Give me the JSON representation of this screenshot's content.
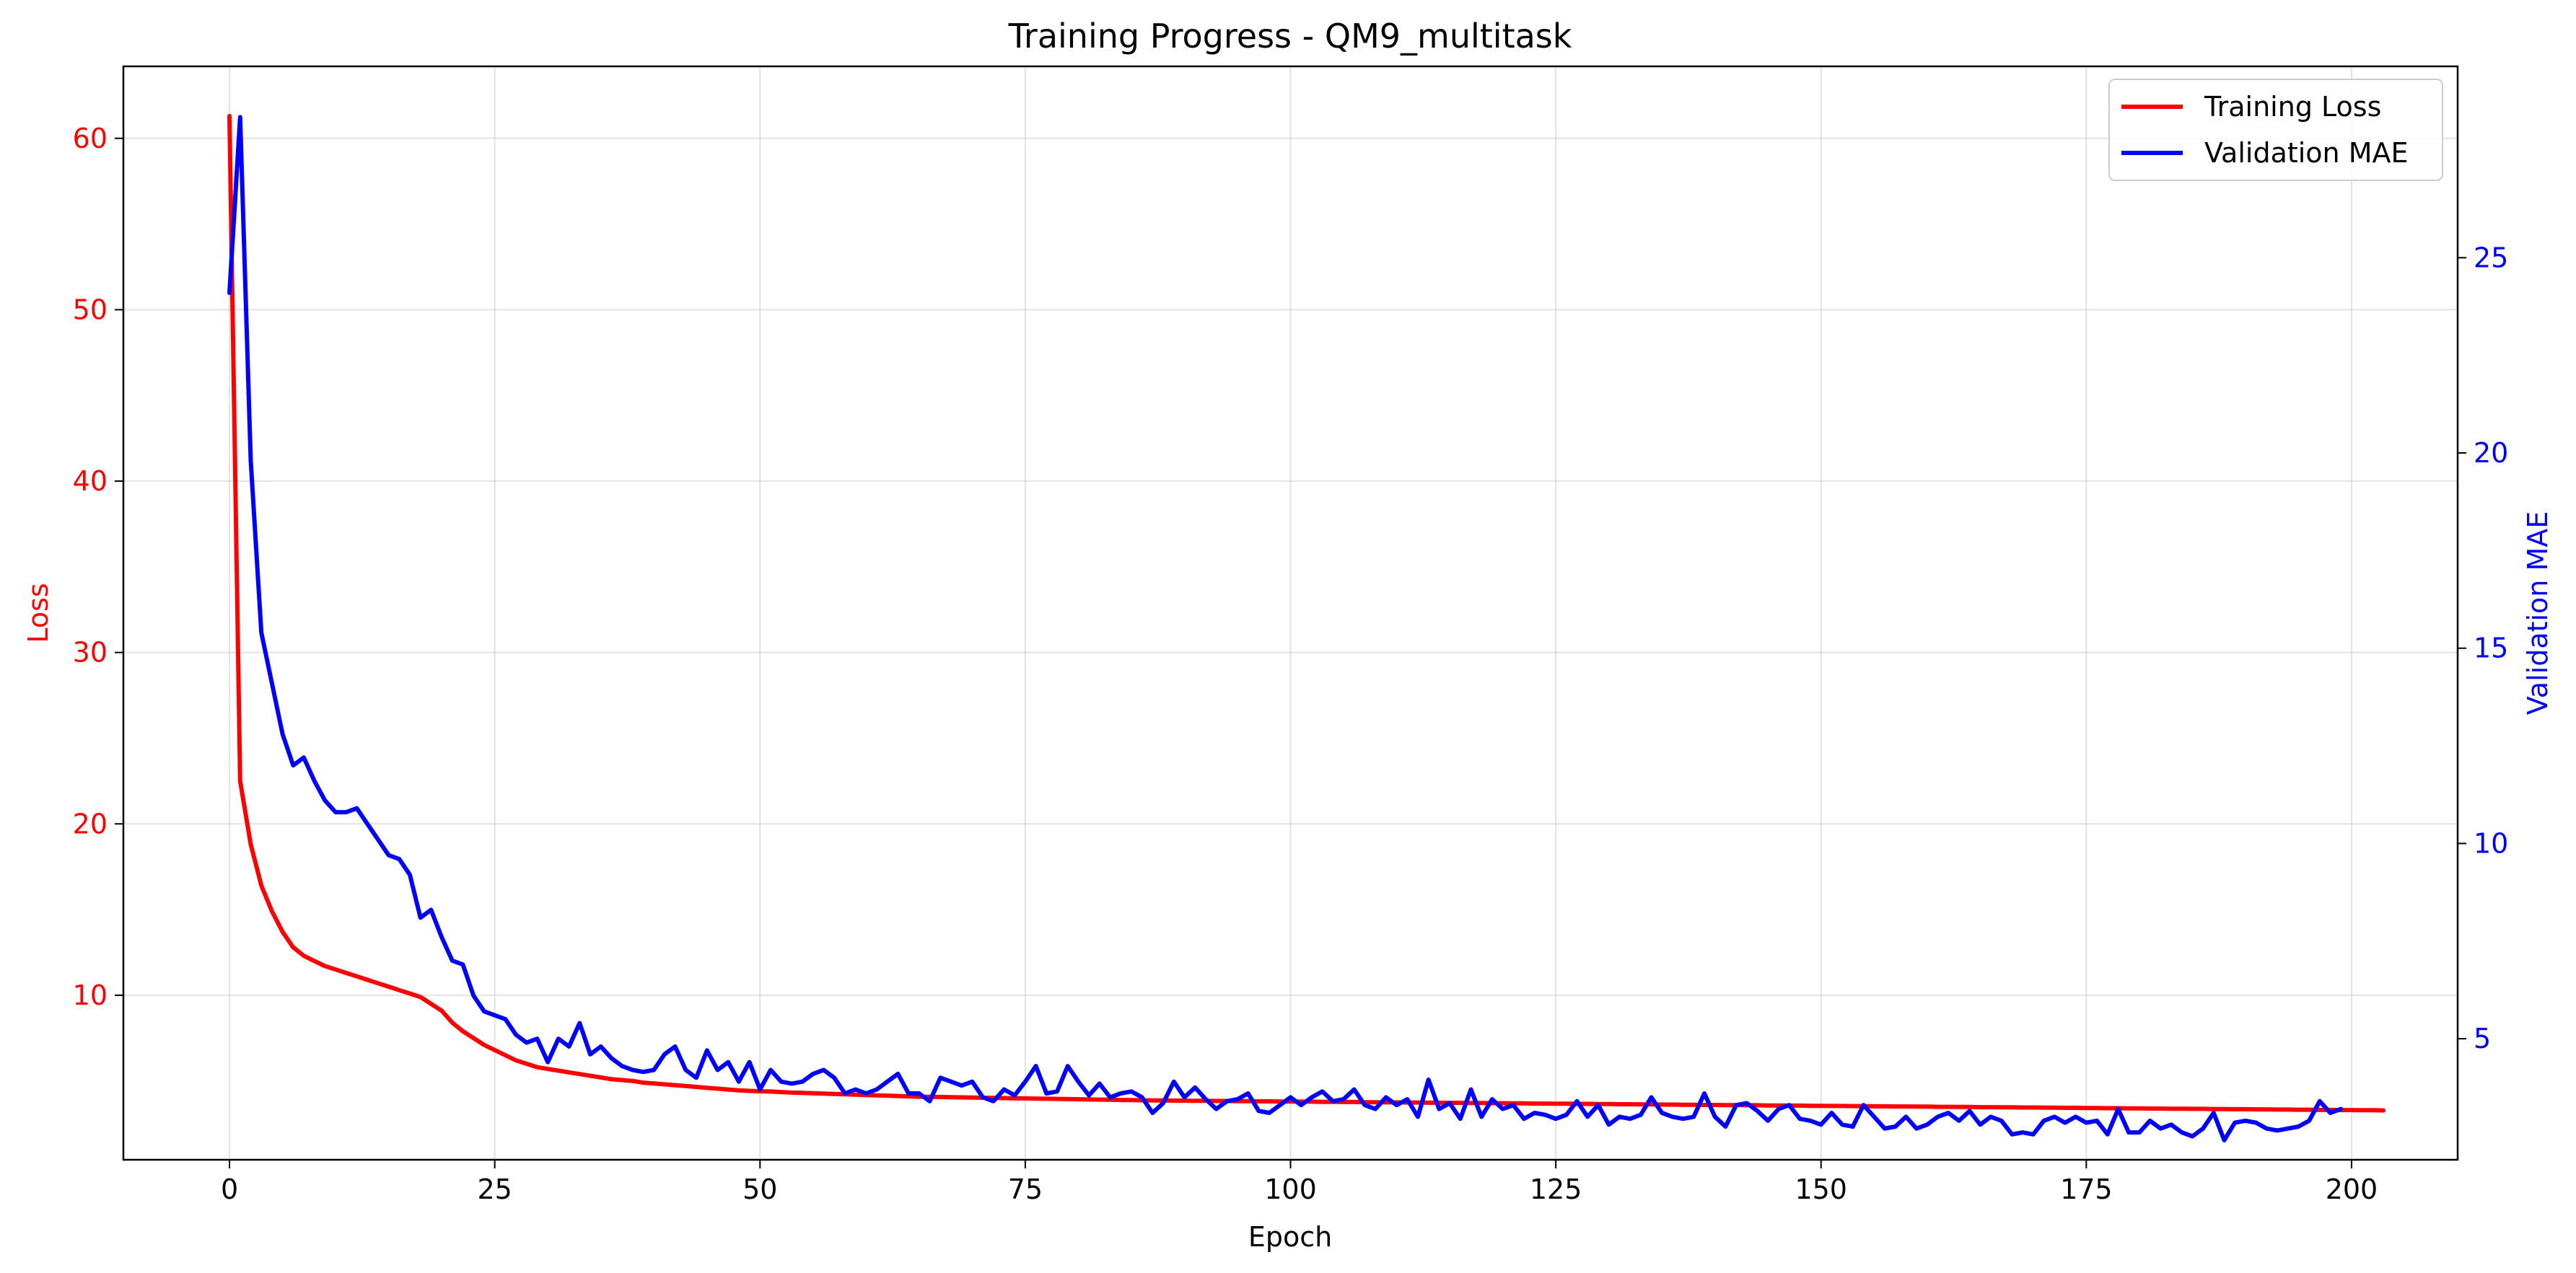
{
  "chart_data": {
    "type": "line",
    "title": "Training Progress - QM9_multitask",
    "xlabel": "Epoch",
    "ylabel_left": "Loss",
    "ylabel_right": "Validation MAE",
    "xlim": [
      -10,
      210
    ],
    "ylim_left": [
      0.4,
      64.2
    ],
    "ylim_right": [
      1.9,
      29.9
    ],
    "x_ticks": [
      0,
      25,
      50,
      75,
      100,
      125,
      150,
      175,
      200
    ],
    "y_ticks_left": [
      10,
      20,
      30,
      40,
      50,
      60
    ],
    "y_ticks_right": [
      5,
      10,
      15,
      20,
      25
    ],
    "grid": true,
    "legend_position": "top-right",
    "colors": {
      "left_axis": "#ff0000",
      "right_axis": "#0000ff"
    },
    "series": [
      {
        "name": "Training Loss",
        "axis": "left",
        "color": "#ff0000",
        "x_start": 0,
        "x_step": 1,
        "values": [
          61.3,
          22.5,
          18.8,
          16.4,
          14.9,
          13.7,
          12.8,
          12.3,
          12.0,
          11.7,
          11.5,
          11.3,
          11.1,
          10.9,
          10.7,
          10.5,
          10.3,
          10.1,
          9.9,
          9.5,
          9.1,
          8.4,
          7.9,
          7.5,
          7.1,
          6.8,
          6.5,
          6.2,
          6.0,
          5.8,
          5.7,
          5.6,
          5.5,
          5.4,
          5.3,
          5.2,
          5.1,
          5.05,
          5.0,
          4.9,
          4.85,
          4.8,
          4.75,
          4.7,
          4.65,
          4.6,
          4.55,
          4.5,
          4.45,
          4.42,
          4.4,
          4.38,
          4.35,
          4.32,
          4.3,
          4.28,
          4.26,
          4.24,
          4.22,
          4.2,
          4.18,
          4.16,
          4.14,
          4.12,
          4.1,
          4.08,
          4.07,
          4.06,
          4.05,
          4.04,
          4.03,
          4.02,
          4.01,
          4.0,
          3.99,
          3.98,
          3.97,
          3.96,
          3.95,
          3.94,
          3.93,
          3.92,
          3.91,
          3.9,
          3.89,
          3.88,
          3.87,
          3.86,
          3.86,
          3.85,
          3.85,
          3.84,
          3.84,
          3.83,
          3.83,
          3.82,
          3.82,
          3.81,
          3.81,
          3.8,
          3.8,
          3.79,
          3.79,
          3.78,
          3.78,
          3.77,
          3.77,
          3.76,
          3.76,
          3.75,
          3.75,
          3.74,
          3.74,
          3.73,
          3.73,
          3.72,
          3.72,
          3.71,
          3.71,
          3.7,
          3.7,
          3.69,
          3.69,
          3.68,
          3.68,
          3.67,
          3.67,
          3.66,
          3.66,
          3.65,
          3.65,
          3.64,
          3.64,
          3.63,
          3.63,
          3.62,
          3.62,
          3.61,
          3.61,
          3.6,
          3.6,
          3.59,
          3.59,
          3.58,
          3.58,
          3.57,
          3.57,
          3.56,
          3.56,
          3.55,
          3.55,
          3.54,
          3.54,
          3.53,
          3.53,
          3.52,
          3.52,
          3.51,
          3.51,
          3.5,
          3.5,
          3.49,
          3.49,
          3.48,
          3.48,
          3.47,
          3.47,
          3.46,
          3.46,
          3.45,
          3.45,
          3.44,
          3.44,
          3.43,
          3.43,
          3.42,
          3.42,
          3.41,
          3.41,
          3.4,
          3.4,
          3.39,
          3.39,
          3.38,
          3.38,
          3.37,
          3.37,
          3.36,
          3.36,
          3.35,
          3.35,
          3.34,
          3.34,
          3.33,
          3.33,
          3.32,
          3.32,
          3.31,
          3.31,
          3.3,
          3.3,
          3.29,
          3.29,
          3.28
        ]
      },
      {
        "name": "Validation MAE",
        "axis": "right",
        "color": "#0000ff",
        "x_start": 0,
        "x_step": 1,
        "values": [
          24.1,
          28.6,
          19.8,
          15.4,
          14.1,
          12.8,
          12.0,
          12.2,
          11.6,
          11.1,
          10.8,
          10.8,
          10.9,
          10.5,
          10.1,
          9.7,
          9.6,
          9.2,
          8.1,
          8.3,
          7.6,
          7.0,
          6.9,
          6.1,
          5.7,
          5.6,
          5.5,
          5.1,
          4.9,
          5.0,
          4.4,
          5.0,
          4.8,
          5.4,
          4.6,
          4.8,
          4.5,
          4.3,
          4.2,
          4.15,
          4.2,
          4.6,
          4.8,
          4.2,
          4.0,
          4.7,
          4.2,
          4.4,
          3.9,
          4.4,
          3.7,
          4.2,
          3.9,
          3.85,
          3.9,
          4.1,
          4.2,
          4.0,
          3.6,
          3.7,
          3.6,
          3.7,
          3.9,
          4.1,
          3.6,
          3.6,
          3.4,
          4.0,
          3.9,
          3.8,
          3.9,
          3.5,
          3.4,
          3.7,
          3.55,
          3.9,
          4.3,
          3.6,
          3.65,
          4.3,
          3.9,
          3.55,
          3.85,
          3.5,
          3.6,
          3.65,
          3.5,
          3.1,
          3.35,
          3.9,
          3.5,
          3.75,
          3.45,
          3.2,
          3.4,
          3.45,
          3.6,
          3.15,
          3.1,
          3.3,
          3.5,
          3.3,
          3.5,
          3.65,
          3.4,
          3.45,
          3.7,
          3.3,
          3.2,
          3.5,
          3.3,
          3.45,
          3.0,
          3.95,
          3.2,
          3.35,
          2.95,
          3.7,
          3.0,
          3.45,
          3.2,
          3.3,
          2.95,
          3.1,
          3.05,
          2.95,
          3.05,
          3.4,
          3.0,
          3.3,
          2.8,
          3.0,
          2.95,
          3.05,
          3.5,
          3.1,
          3.0,
          2.95,
          3.0,
          3.6,
          3.0,
          2.75,
          3.3,
          3.35,
          3.15,
          2.9,
          3.2,
          3.3,
          2.95,
          2.9,
          2.8,
          3.1,
          2.8,
          2.75,
          3.3,
          3.0,
          2.7,
          2.75,
          3.0,
          2.7,
          2.8,
          3.0,
          3.1,
          2.9,
          3.15,
          2.8,
          3.0,
          2.9,
          2.55,
          2.6,
          2.55,
          2.9,
          3.0,
          2.85,
          3.0,
          2.85,
          2.9,
          2.55,
          3.2,
          2.6,
          2.6,
          2.9,
          2.7,
          2.8,
          2.6,
          2.5,
          2.7,
          3.1,
          2.4,
          2.85,
          2.9,
          2.85,
          2.7,
          2.65,
          2.7,
          2.75,
          2.9,
          3.4,
          3.1,
          3.2
        ]
      }
    ]
  }
}
